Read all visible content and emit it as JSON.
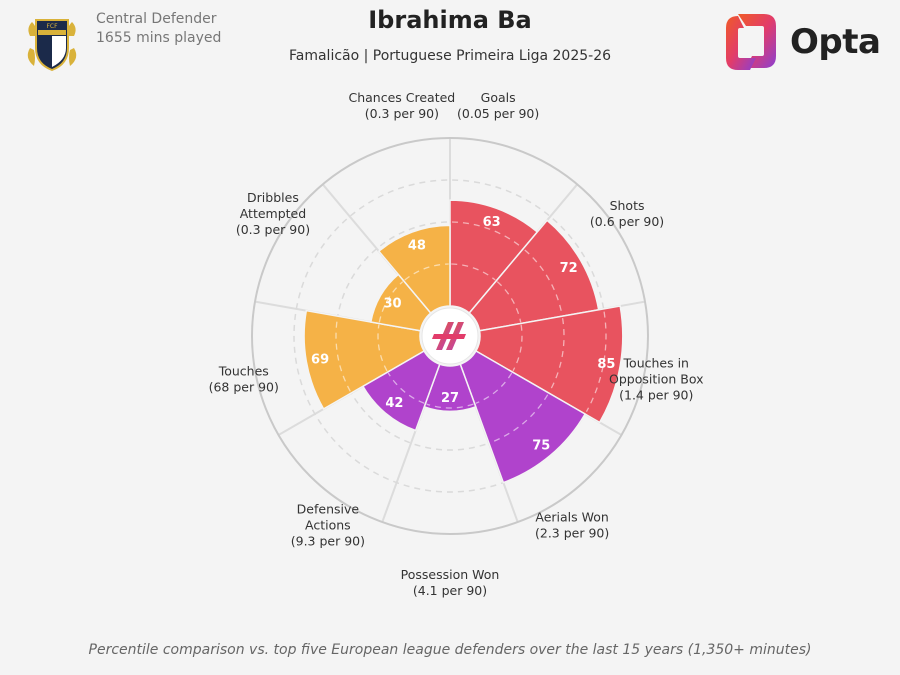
{
  "header": {
    "position": "Central Defender",
    "minutes": "1655 mins played",
    "player": "Ibrahima Ba",
    "subtitle": "Famalicão | Portuguese Primeira Liga 2025-26",
    "brand": "Opta",
    "club_badge_icon": "famalicao-crest-icon",
    "brand_logo_icon": "opta-logo-icon"
  },
  "footnote": "Percentile comparison vs. top five European league defenders over the last 15 years (1,350+ minutes)",
  "colors": {
    "attacking": "#e8535f",
    "possession": "#f5b247",
    "defending": "#b043cc",
    "background": "#f4f4f4",
    "ring": "#c9c9c9"
  },
  "chart_data": {
    "type": "polar-bar",
    "scale": [
      0,
      100
    ],
    "gridlines": [
      25,
      50,
      75
    ],
    "metrics": [
      {
        "label": "Goals",
        "sub": "(0.05 per 90)",
        "percentile": 63,
        "group": "attacking"
      },
      {
        "label": "Shots",
        "sub": "(0.6 per 90)",
        "percentile": 72,
        "group": "attacking"
      },
      {
        "label": "Touches in\nOpposition Box",
        "sub": "(1.4 per 90)",
        "percentile": 85,
        "group": "attacking"
      },
      {
        "label": "Aerials Won",
        "sub": "(2.3 per 90)",
        "percentile": 75,
        "group": "defending"
      },
      {
        "label": "Possession Won",
        "sub": "(4.1 per 90)",
        "percentile": 27,
        "group": "defending"
      },
      {
        "label": "Defensive\nActions",
        "sub": "(9.3 per 90)",
        "percentile": 42,
        "group": "defending"
      },
      {
        "label": "Touches",
        "sub": "(68 per 90)",
        "percentile": 69,
        "group": "possession"
      },
      {
        "label": "Dribbles\nAttempted",
        "sub": "(0.3 per 90)",
        "percentile": 30,
        "group": "possession"
      },
      {
        "label": "Chances Created",
        "sub": "(0.3 per 90)",
        "percentile": 48,
        "group": "possession"
      }
    ]
  }
}
